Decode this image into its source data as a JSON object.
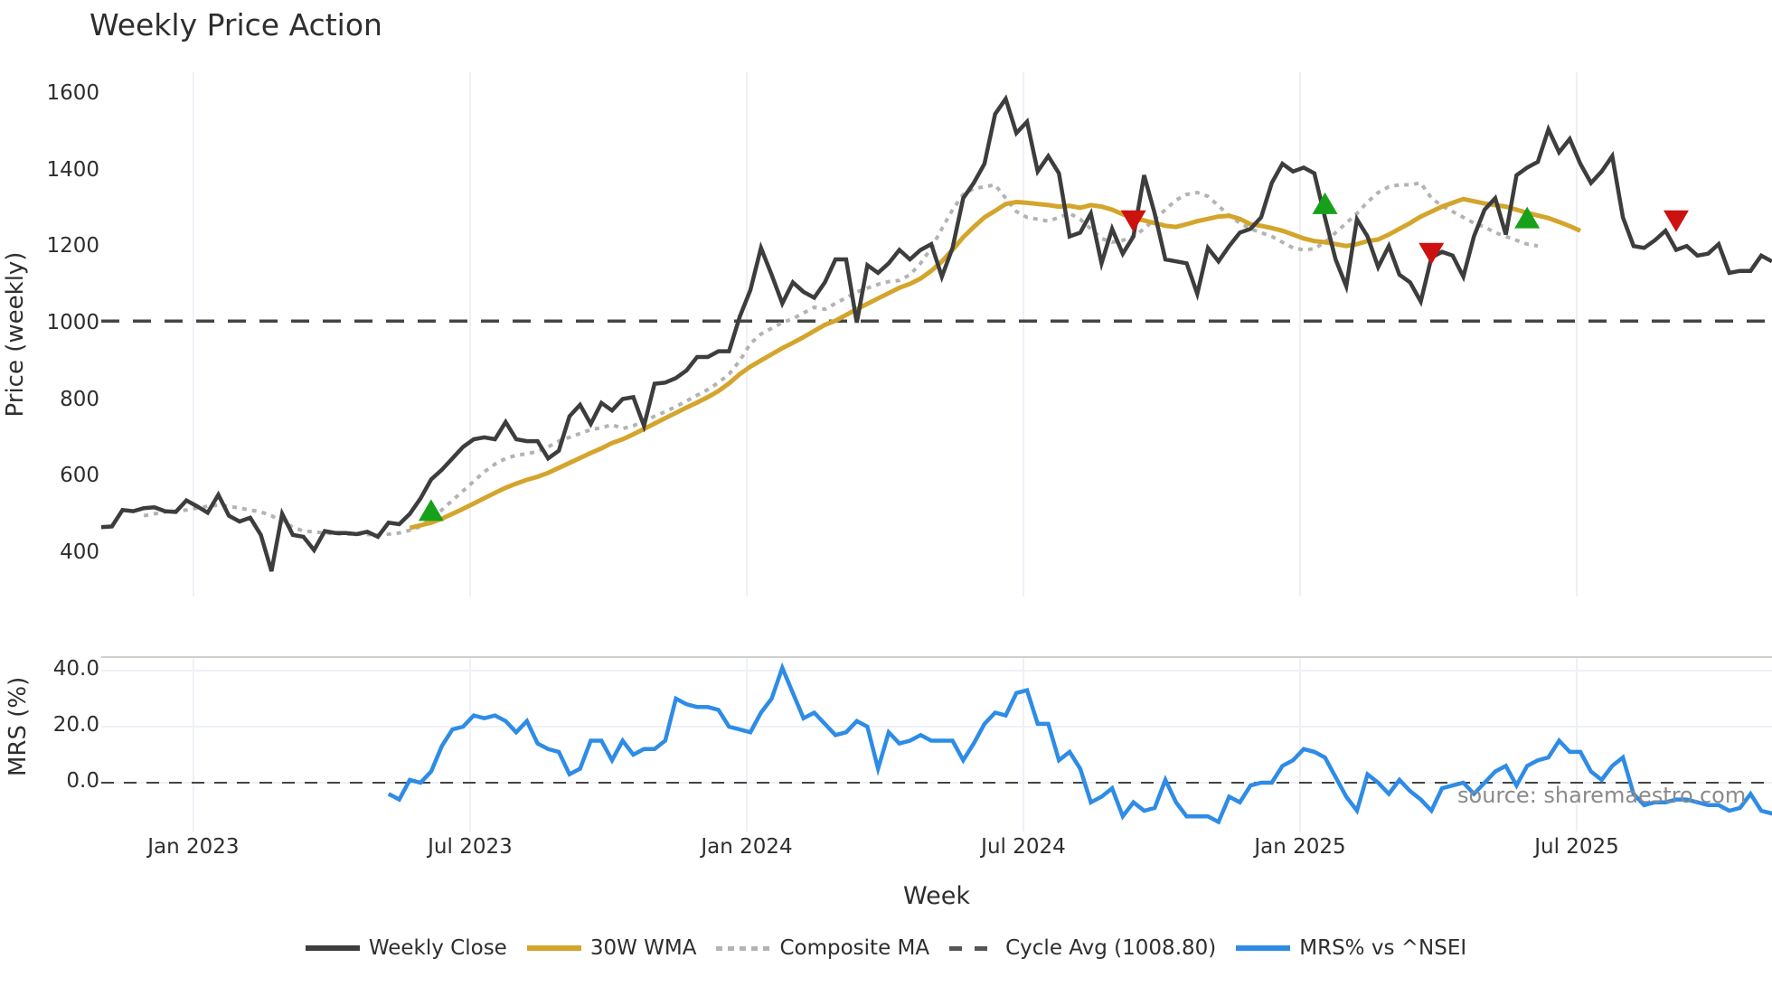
{
  "title": "Weekly Price Action",
  "source_note": "source: sharemaestro.com",
  "price_panel": {
    "ylabel": "Price (weekly)",
    "yticks": [
      400,
      600,
      800,
      1000,
      1200,
      1400,
      1600
    ],
    "ytick_labels": [
      "400",
      "600",
      "800",
      "1000",
      "1200",
      "1400",
      "1600"
    ]
  },
  "mrs_panel": {
    "ylabel": "MRS (%)",
    "yticks": [
      0,
      20,
      40
    ],
    "ytick_labels": [
      "0.0",
      "20.0",
      "40.0"
    ]
  },
  "xaxis": {
    "label": "Week",
    "ticks": [
      "Jan 2023",
      "Jul 2023",
      "Jan 2024",
      "Jul 2024",
      "Jan 2025",
      "Jul 2025"
    ]
  },
  "legend": [
    {
      "label": "Weekly Close",
      "color": "#3d3d3d",
      "style": "solid"
    },
    {
      "label": "30W WMA",
      "color": "#d4a52c",
      "style": "solid"
    },
    {
      "label": "Composite MA",
      "color": "#b3b3b3",
      "style": "dotted"
    },
    {
      "label": "Cycle Avg (1008.80)",
      "color": "#555555",
      "style": "dashed"
    },
    {
      "label": "MRS% vs ^NSEI",
      "color": "#2e8ce6",
      "style": "solid"
    }
  ],
  "colors": {
    "close": "#3d3d3d",
    "wma": "#d4a52c",
    "composite": "#b3b3b3",
    "cycle": "#444444",
    "mrs": "#2e8ce6",
    "buy": "#17a11a",
    "sell": "#cc1111",
    "grid": "#e8ecf2"
  },
  "chart_data": {
    "type": "line",
    "title": "Weekly Price Action",
    "xlabel": "Week",
    "ylabel": "Price (weekly)",
    "ylabel_lower": "MRS (%)",
    "ylim": [
      300,
      1650
    ],
    "ylim_lower": [
      -15,
      45
    ],
    "x_tick_labels": [
      "Jan 2023",
      "Jul 2023",
      "Jan 2024",
      "Jul 2024",
      "Jan 2025",
      "Jul 2025"
    ],
    "x_tick_week_index": [
      9,
      35,
      61,
      87,
      113,
      139
    ],
    "cycle_avg": 1008.8,
    "series": [
      {
        "name": "Weekly Close",
        "start_index": 0,
        "values": [
          470,
          472,
          515,
          512,
          520,
          522,
          512,
          510,
          540,
          525,
          508,
          555,
          500,
          485,
          495,
          450,
          355,
          505,
          450,
          445,
          410,
          460,
          455,
          455,
          452,
          458,
          445,
          482,
          478,
          505,
          545,
          595,
          620,
          650,
          680,
          700,
          705,
          700,
          745,
          700,
          695,
          695,
          650,
          670,
          760,
          790,
          740,
          795,
          775,
          805,
          810,
          735,
          845,
          848,
          860,
          880,
          915,
          915,
          930,
          930,
          1020,
          1090,
          1200,
          1130,
          1055,
          1110,
          1085,
          1070,
          1110,
          1170,
          1170,
          1005,
          1155,
          1135,
          1160,
          1195,
          1170,
          1195,
          1210,
          1125,
          1200,
          1330,
          1370,
          1420,
          1550,
          1590,
          1500,
          1530,
          1400,
          1440,
          1395,
          1230,
          1240,
          1290,
          1160,
          1250,
          1185,
          1230,
          1390,
          1290,
          1170,
          1165,
          1160,
          1080,
          1200,
          1165,
          1205,
          1240,
          1250,
          1280,
          1370,
          1420,
          1400,
          1410,
          1395,
          1280,
          1170,
          1100,
          1275,
          1230,
          1150,
          1205,
          1130,
          1110,
          1060,
          1175,
          1190,
          1180,
          1125,
          1230,
          1300,
          1330,
          1235,
          1390,
          1410,
          1425,
          1510,
          1450,
          1485,
          1420,
          1370,
          1400,
          1440,
          1280,
          1205,
          1200,
          1220,
          1245,
          1195,
          1205,
          1180,
          1185,
          1210,
          1135,
          1140,
          1140,
          1180,
          1165
        ]
      },
      {
        "name": "30W WMA",
        "start_index": 29,
        "values": [
          468,
          475,
          482,
          492,
          505,
          518,
          532,
          546,
          560,
          573,
          584,
          594,
          602,
          612,
          625,
          638,
          651,
          664,
          676,
          690,
          700,
          713,
          727,
          741,
          755,
          769,
          783,
          796,
          810,
          826,
          846,
          870,
          890,
          906,
          922,
          938,
          952,
          967,
          983,
          999,
          1010,
          1025,
          1040,
          1054,
          1068,
          1082,
          1096,
          1106,
          1120,
          1140,
          1165,
          1195,
          1228,
          1255,
          1280,
          1297,
          1315,
          1320,
          1318,
          1315,
          1312,
          1308,
          1310,
          1305,
          1312,
          1308,
          1300,
          1288,
          1278,
          1272,
          1265,
          1258,
          1255,
          1262,
          1270,
          1276,
          1282,
          1284,
          1276,
          1262,
          1258,
          1252,
          1245,
          1235,
          1225,
          1218,
          1215,
          1210,
          1205,
          1210,
          1218,
          1222,
          1235,
          1250,
          1265,
          1282,
          1295,
          1308,
          1318,
          1328,
          1322,
          1316,
          1312,
          1308,
          1300,
          1292,
          1285,
          1278,
          1268,
          1257,
          1245
        ]
      },
      {
        "name": "Composite MA",
        "start_index": 4,
        "values": [
          500,
          505,
          510,
          512,
          515,
          520,
          525,
          528,
          525,
          520,
          515,
          510,
          500,
          485,
          470,
          460,
          458,
          455,
          453,
          452,
          452,
          451,
          450,
          452,
          455,
          462,
          472,
          492,
          515,
          540,
          565,
          590,
          615,
          635,
          650,
          658,
          662,
          668,
          680,
          695,
          705,
          715,
          725,
          730,
          738,
          728,
          735,
          748,
          760,
          772,
          785,
          800,
          815,
          830,
          848,
          870,
          905,
          950,
          975,
          990,
          1005,
          1015,
          1030,
          1045,
          1040,
          1055,
          1070,
          1085,
          1095,
          1105,
          1112,
          1115,
          1130,
          1160,
          1200,
          1250,
          1300,
          1340,
          1355,
          1360,
          1365,
          1330,
          1295,
          1280,
          1275,
          1270,
          1280,
          1290,
          1275,
          1250,
          1225,
          1215,
          1220,
          1230,
          1250,
          1275,
          1300,
          1325,
          1340,
          1345,
          1335,
          1310,
          1285,
          1265,
          1250,
          1240,
          1230,
          1215,
          1200,
          1195,
          1198,
          1215,
          1240,
          1265,
          1290,
          1320,
          1345,
          1360,
          1365,
          1365,
          1370,
          1330,
          1310,
          1295,
          1280,
          1265,
          1255,
          1240,
          1230,
          1220,
          1210,
          1205
        ]
      },
      {
        "name": "MRS% vs ^NSEI",
        "start_index": 27,
        "values": [
          -4,
          -6,
          1,
          0,
          4,
          13,
          19,
          20,
          24,
          23,
          24,
          22,
          18,
          22,
          14,
          12,
          11,
          3,
          5,
          15,
          15,
          8,
          15,
          10,
          12,
          12,
          15,
          30,
          28,
          27,
          27,
          26,
          20,
          19,
          18,
          25,
          30,
          41,
          32,
          23,
          25,
          21,
          17,
          18,
          22,
          20,
          5,
          18,
          14,
          15,
          17,
          15,
          15,
          15,
          8,
          14,
          21,
          25,
          24,
          32,
          33,
          21,
          21,
          8,
          11,
          5,
          -7,
          -5,
          -2,
          -12,
          -7,
          -10,
          -9,
          1,
          -7,
          -12,
          -12,
          -12,
          -14,
          -5,
          -7,
          -1,
          0,
          0,
          6,
          8,
          12,
          11,
          9,
          2,
          -5,
          -10,
          3,
          0,
          -4,
          1,
          -3,
          -6,
          -10,
          -2,
          -1,
          0,
          -4,
          0,
          4,
          6,
          -1,
          6,
          8,
          9,
          15,
          11,
          11,
          4,
          1,
          6,
          9,
          -4,
          -8,
          -7,
          -7,
          -6,
          -6,
          -7,
          -8,
          -8,
          -10,
          -9,
          -4,
          -10,
          -11,
          -11,
          -13,
          -10,
          -11
        ]
      }
    ],
    "markers": [
      {
        "type": "buy",
        "index": 31,
        "value": 510
      },
      {
        "type": "sell",
        "index": 97,
        "value": 1270
      },
      {
        "type": "buy",
        "index": 115,
        "value": 1312
      },
      {
        "type": "sell",
        "index": 125,
        "value": 1185
      },
      {
        "type": "buy",
        "index": 134,
        "value": 1275
      },
      {
        "type": "sell",
        "index": 148,
        "value": 1270
      }
    ]
  }
}
